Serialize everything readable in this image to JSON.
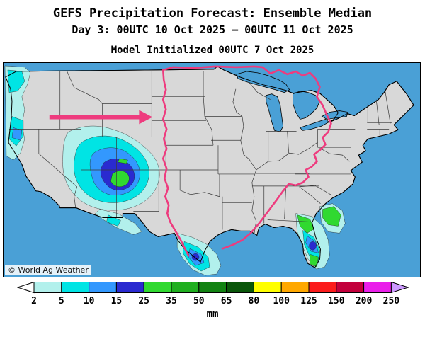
{
  "header": {
    "title": "GEFS Precipitation Forecast: Ensemble Median",
    "subtitle": "Day 3: 00UTC 10 Oct 2025 — 00UTC 11 Oct 2025",
    "init_line": "Model Initialized 00UTC 7 Oct 2025"
  },
  "map": {
    "watermark": "© World Ag Weather",
    "colors": {
      "ocean": "#4aa0d6",
      "land": "#d8d8d8",
      "coast": "#000000",
      "state_border": "#3a3a3a",
      "highlight": "#ee3b7e"
    }
  },
  "colorbar": {
    "unit": "mm",
    "ticks": [
      "2",
      "5",
      "10",
      "15",
      "25",
      "35",
      "50",
      "65",
      "80",
      "100",
      "125",
      "150",
      "200",
      "250"
    ],
    "segment_colors": [
      "#b2f0ec",
      "#00e4e4",
      "#3398fe",
      "#2a2ad0",
      "#30d930",
      "#1faf1f",
      "#128312",
      "#0a570a",
      "#ffff00",
      "#ffa800",
      "#fb1c1c",
      "#c2003c",
      "#ea1fea"
    ],
    "end_low_color": "#ffffff",
    "end_high_color": "#cc99ff"
  }
}
